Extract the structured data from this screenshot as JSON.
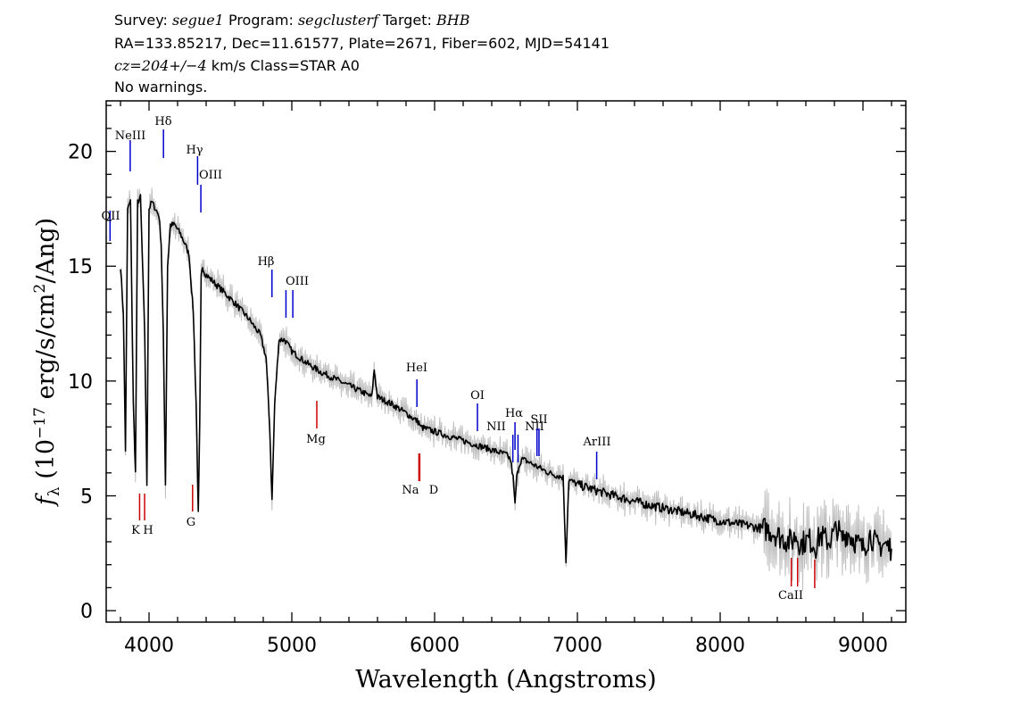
{
  "header": {
    "survey_label": "Survey:",
    "survey": "segue1",
    "program_label": "Program:",
    "program": "segclusterf",
    "target_label": "Target:",
    "target": "BHB",
    "line2": "RA=133.85217, Dec=11.61577, Plate=2671, Fiber=602, MJD=54141",
    "cz": "cz=204+/−4",
    "cz_rest": " km/s Class=STAR A0",
    "warnings": "No warnings."
  },
  "chart_data": {
    "type": "line",
    "xlabel": "Wavelength (Angstroms)",
    "ylabel": "fλ (10⁻¹⁷ erg/s/cm²/Ang)",
    "xlim": [
      3700,
      9300
    ],
    "ylim": [
      -0.5,
      22.2
    ],
    "x_ticks": [
      4000,
      5000,
      6000,
      7000,
      8000,
      9000
    ],
    "y_ticks": [
      0,
      5,
      10,
      15,
      20
    ],
    "colors": {
      "flux": "#000000",
      "error": "#bfbfbf",
      "emission": "#0000cc",
      "absorption": "#cc0000"
    },
    "series": [
      {
        "x": [
          3800,
          3820,
          3835,
          3850,
          3870,
          3890,
          3905,
          3920,
          3940,
          3955,
          3970,
          3985,
          4000,
          4020,
          4045,
          4070,
          4085,
          4100,
          4115,
          4130,
          4150,
          4180,
          4220,
          4250,
          4280,
          4310,
          4330,
          4345,
          4355,
          4365,
          4375,
          4390,
          4420,
          4470,
          4520,
          4600,
          4700,
          4780,
          4820,
          4845,
          4861,
          4880,
          4910,
          4950,
          5000,
          5100,
          5200,
          5300,
          5400,
          5500,
          5560,
          5577,
          5600,
          5700,
          5800,
          5890,
          5900,
          6000,
          6200,
          6400,
          6500,
          6530,
          6550,
          6563,
          6575,
          6590,
          6610,
          6650,
          6800,
          6900,
          6920,
          6940,
          7000,
          7200,
          7500,
          7800,
          8000,
          8200,
          8350,
          8400,
          8450,
          8500,
          8530,
          8560,
          8620,
          8670,
          8700,
          8760,
          8820,
          8850,
          8890,
          8950,
          9000,
          9050,
          9100,
          9150,
          9200
        ],
        "y": [
          15.0,
          13.0,
          7.0,
          17.5,
          17.8,
          9.0,
          6.0,
          17.8,
          18.0,
          15.0,
          12.0,
          5.5,
          17.5,
          17.8,
          17.5,
          17.2,
          16.0,
          12.0,
          5.5,
          15.0,
          16.8,
          16.8,
          16.4,
          16.0,
          15.5,
          13.0,
          9.0,
          4.2,
          8.0,
          14.5,
          15.0,
          14.7,
          14.5,
          14.2,
          13.9,
          13.4,
          12.7,
          12.0,
          11.0,
          8.0,
          4.8,
          9.0,
          11.8,
          11.8,
          11.3,
          10.8,
          10.4,
          10.1,
          9.8,
          9.5,
          9.3,
          10.5,
          9.3,
          9.0,
          8.6,
          8.2,
          8.0,
          7.8,
          7.4,
          7.0,
          6.8,
          6.6,
          5.8,
          4.6,
          5.8,
          6.3,
          6.6,
          6.5,
          6.0,
          5.8,
          2.2,
          5.7,
          5.5,
          5.1,
          4.6,
          4.2,
          3.9,
          3.7,
          3.5,
          3.3,
          3.1,
          3.0,
          3.3,
          2.9,
          3.1,
          2.8,
          3.3,
          3.0,
          3.6,
          3.1,
          3.4,
          3.0,
          2.7,
          3.3,
          2.8,
          2.9,
          2.7
        ]
      }
    ],
    "emission_lines": [
      {
        "label": "OII",
        "x": 3727
      },
      {
        "label": "NeIII",
        "x": 3868
      },
      {
        "label": "Hδ",
        "x": 4101
      },
      {
        "label": "Hγ",
        "x": 4340
      },
      {
        "label": "OIII",
        "x": 4363
      },
      {
        "label": "Hβ",
        "x": 4861
      },
      {
        "label": "OIII",
        "x": 4959
      },
      {
        "label": "OIII",
        "x": 5007
      },
      {
        "label": "HeI",
        "x": 5876
      },
      {
        "label": "OI",
        "x": 6300
      },
      {
        "label": "NII",
        "x": 6548
      },
      {
        "label": "Hα",
        "x": 6563
      },
      {
        "label": "NII",
        "x": 6584
      },
      {
        "label": "SII",
        "x": 6717
      },
      {
        "label": "SII",
        "x": 6731
      },
      {
        "label": "ArIII",
        "x": 7135
      }
    ],
    "absorption_lines": [
      {
        "label": "K",
        "x": 3934
      },
      {
        "label": "H",
        "x": 3969
      },
      {
        "label": "G",
        "x": 4305
      },
      {
        "label": "Mg",
        "x": 5175
      },
      {
        "label": "Na",
        "x": 5890
      },
      {
        "label": "D",
        "x": 5896
      },
      {
        "label": "CaII",
        "x": 8498
      },
      {
        "label": "CaII",
        "x": 8542
      },
      {
        "label": "CaII",
        "x": 8662
      }
    ]
  }
}
